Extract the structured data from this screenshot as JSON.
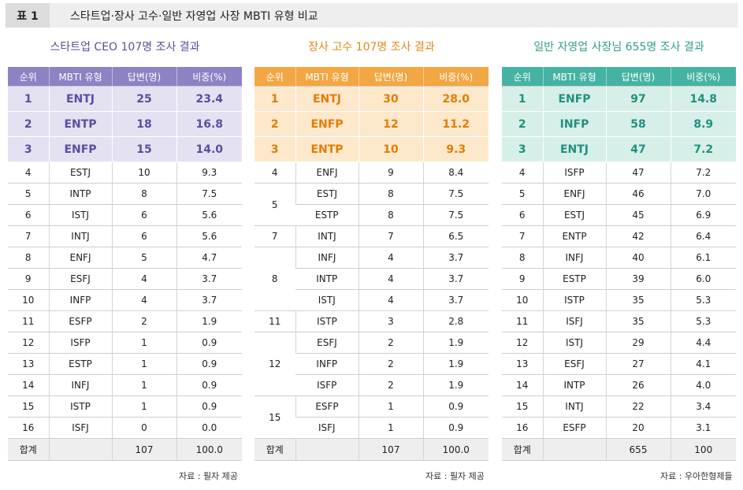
{
  "table_number": "표 1",
  "table_title": "스타트업·장사 고수·일반 자영업 사장 MBTI 유형 비교",
  "headers": [
    "순위",
    "MBTI 유형",
    "답변(명)",
    "비중(%)"
  ],
  "total_label": "합계",
  "panels": [
    {
      "title": "스타트업 CEO 107명 조사 결과",
      "source": "자료 : 필자 제공",
      "total_count": "107",
      "total_pct": "100.0",
      "rows": [
        {
          "rank": "1",
          "type": "ENTJ",
          "count": "25",
          "pct": "23.4"
        },
        {
          "rank": "2",
          "type": "ENTP",
          "count": "18",
          "pct": "16.8"
        },
        {
          "rank": "3",
          "type": "ENFP",
          "count": "15",
          "pct": "14.0"
        },
        {
          "rank": "4",
          "type": "ESTJ",
          "count": "10",
          "pct": "9.3"
        },
        {
          "rank": "5",
          "type": "INTP",
          "count": "8",
          "pct": "7.5"
        },
        {
          "rank": "6",
          "type": "ISTJ",
          "count": "6",
          "pct": "5.6"
        },
        {
          "rank": "7",
          "type": "INTJ",
          "count": "6",
          "pct": "5.6"
        },
        {
          "rank": "8",
          "type": "ENFJ",
          "count": "5",
          "pct": "4.7"
        },
        {
          "rank": "9",
          "type": "ESFJ",
          "count": "4",
          "pct": "3.7"
        },
        {
          "rank": "10",
          "type": "INFP",
          "count": "4",
          "pct": "3.7"
        },
        {
          "rank": "11",
          "type": "ESFP",
          "count": "2",
          "pct": "1.9"
        },
        {
          "rank": "12",
          "type": "ISFP",
          "count": "1",
          "pct": "0.9"
        },
        {
          "rank": "13",
          "type": "ESTP",
          "count": "1",
          "pct": "0.9"
        },
        {
          "rank": "14",
          "type": "INFJ",
          "count": "1",
          "pct": "0.9"
        },
        {
          "rank": "15",
          "type": "ISTP",
          "count": "1",
          "pct": "0.9"
        },
        {
          "rank": "16",
          "type": "ISFJ",
          "count": "0",
          "pct": "0.0"
        }
      ]
    },
    {
      "title": "장사 고수 107명 조사 결과",
      "source": "자료 : 필자 제공",
      "total_count": "107",
      "total_pct": "100.0",
      "rows": [
        {
          "rank": "1",
          "type": "ENTJ",
          "count": "30",
          "pct": "28.0"
        },
        {
          "rank": "2",
          "type": "ENFP",
          "count": "12",
          "pct": "11.2"
        },
        {
          "rank": "3",
          "type": "ENTP",
          "count": "10",
          "pct": "9.3"
        },
        {
          "rank": "4",
          "type": "ENFJ",
          "count": "9",
          "pct": "8.4"
        },
        {
          "rank": "5",
          "type": "ESTJ",
          "count": "8",
          "pct": "7.5"
        },
        {
          "rank": "5",
          "type": "ESTP",
          "count": "8",
          "pct": "7.5"
        },
        {
          "rank": "7",
          "type": "INTJ",
          "count": "7",
          "pct": "6.5"
        },
        {
          "rank": "8",
          "type": "INFJ",
          "count": "4",
          "pct": "3.7"
        },
        {
          "rank": "8",
          "type": "INTP",
          "count": "4",
          "pct": "3.7"
        },
        {
          "rank": "8",
          "type": "ISTJ",
          "count": "4",
          "pct": "3.7"
        },
        {
          "rank": "11",
          "type": "ISTP",
          "count": "3",
          "pct": "2.8"
        },
        {
          "rank": "12",
          "type": "ESFJ",
          "count": "2",
          "pct": "1.9"
        },
        {
          "rank": "12",
          "type": "INFP",
          "count": "2",
          "pct": "1.9"
        },
        {
          "rank": "12",
          "type": "ISFP",
          "count": "2",
          "pct": "1.9"
        },
        {
          "rank": "15",
          "type": "ESFP",
          "count": "1",
          "pct": "0.9"
        },
        {
          "rank": "15",
          "type": "ISFJ",
          "count": "1",
          "pct": "0.9"
        }
      ]
    },
    {
      "title": "일반 자영업 사장님 655명 조사 결과",
      "source": "자료 : 우아한형제들",
      "total_count": "655",
      "total_pct": "100",
      "rows": [
        {
          "rank": "1",
          "type": "ENFP",
          "count": "97",
          "pct": "14.8"
        },
        {
          "rank": "2",
          "type": "INFP",
          "count": "58",
          "pct": "8.9"
        },
        {
          "rank": "3",
          "type": "ENTJ",
          "count": "47",
          "pct": "7.2"
        },
        {
          "rank": "4",
          "type": "ISFP",
          "count": "47",
          "pct": "7.2"
        },
        {
          "rank": "5",
          "type": "ENFJ",
          "count": "46",
          "pct": "7.0"
        },
        {
          "rank": "6",
          "type": "ESTJ",
          "count": "45",
          "pct": "6.9"
        },
        {
          "rank": "7",
          "type": "ENTP",
          "count": "42",
          "pct": "6.4"
        },
        {
          "rank": "8",
          "type": "INFJ",
          "count": "40",
          "pct": "6.1"
        },
        {
          "rank": "9",
          "type": "ESTP",
          "count": "39",
          "pct": "6.0"
        },
        {
          "rank": "10",
          "type": "ISTP",
          "count": "35",
          "pct": "5.3"
        },
        {
          "rank": "11",
          "type": "ISFJ",
          "count": "35",
          "pct": "5.3"
        },
        {
          "rank": "12",
          "type": "ISTJ",
          "count": "29",
          "pct": "4.4"
        },
        {
          "rank": "13",
          "type": "ESFJ",
          "count": "27",
          "pct": "4.1"
        },
        {
          "rank": "14",
          "type": "INTP",
          "count": "26",
          "pct": "4.0"
        },
        {
          "rank": "15",
          "type": "INTJ",
          "count": "22",
          "pct": "3.4"
        },
        {
          "rank": "16",
          "type": "ESFP",
          "count": "20",
          "pct": "3.1"
        }
      ]
    }
  ]
}
